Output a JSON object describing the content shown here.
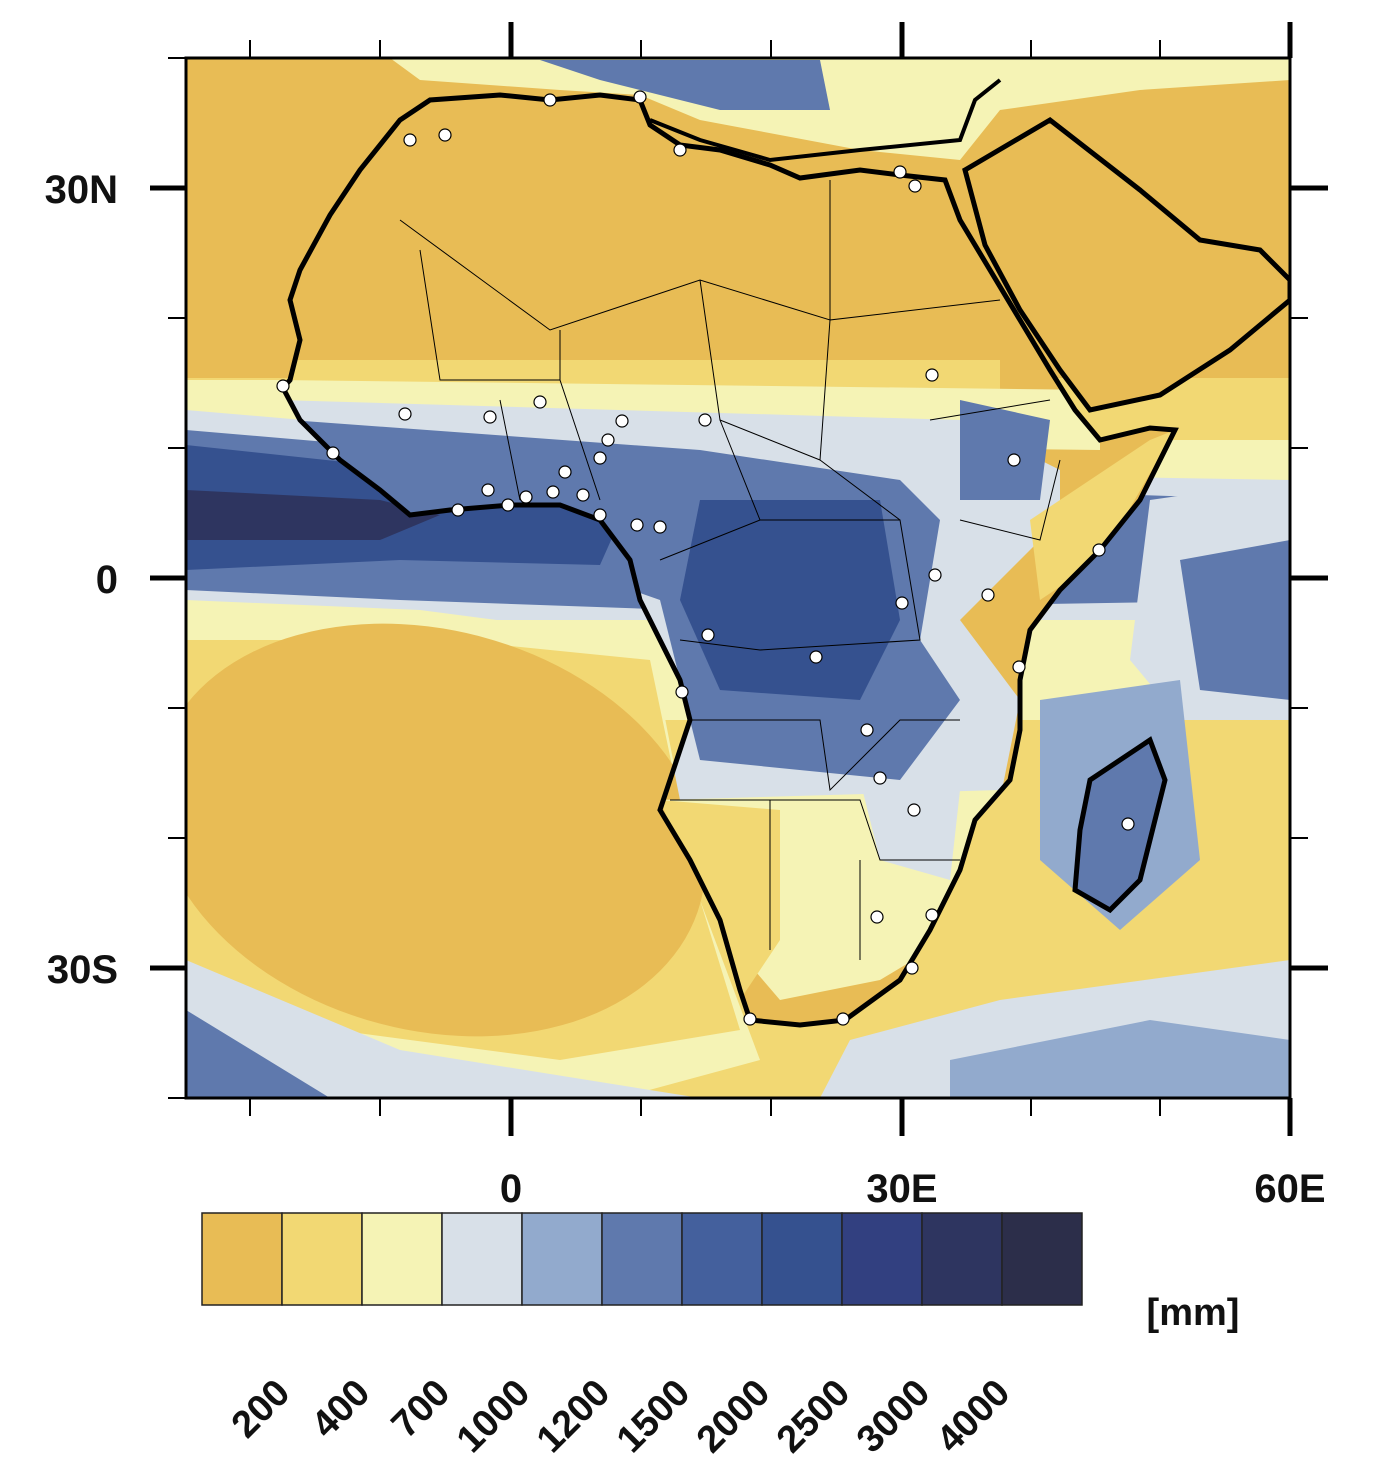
{
  "chart_data": {
    "type": "heatmap",
    "title": "",
    "subtitle": "",
    "xlabel": "",
    "ylabel": "",
    "x_range": [
      -25,
      60
    ],
    "y_range": [
      -40,
      40
    ],
    "x_ticks": [
      {
        "value": 0,
        "label": "0"
      },
      {
        "value": 30,
        "label": "30E"
      },
      {
        "value": 60,
        "label": "60E"
      }
    ],
    "y_ticks": [
      {
        "value": 30,
        "label": "30N"
      },
      {
        "value": 0,
        "label": "0"
      },
      {
        "value": -30,
        "label": "30S"
      }
    ],
    "grid": false,
    "colorbar": {
      "units": "[mm]",
      "placement": "bottom",
      "levels": [
        "200",
        "400",
        "700",
        "1000",
        "1200",
        "1500",
        "2000",
        "2500",
        "3000",
        "4000"
      ],
      "colors": [
        "#e8bc55",
        "#f2d873",
        "#f5f3b5",
        "#d8e0e8",
        "#92aacd",
        "#5f79ad",
        "#44609d",
        "#35518f",
        "#324080",
        "#2e3560",
        "#2c2e4a"
      ]
    }
  }
}
